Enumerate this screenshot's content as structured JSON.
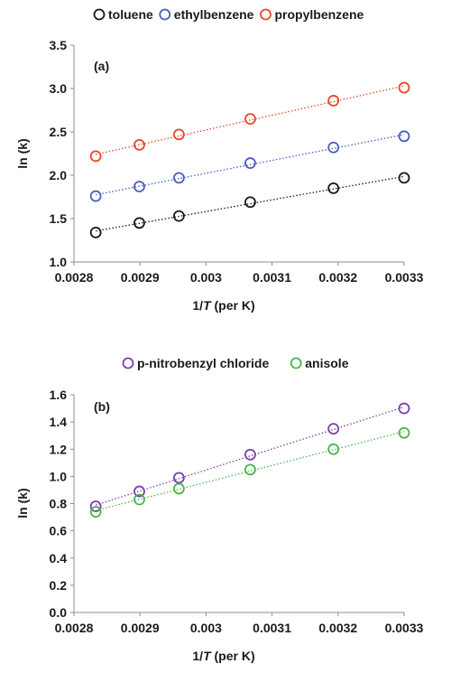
{
  "chart_data": [
    {
      "type": "scatter",
      "panel_label": "(a)",
      "xlabel_prefix": "1/",
      "xlabel_var": "T",
      "xlabel_suffix": " (per K)",
      "ylabel": "ln (k)",
      "xlim": [
        0.0028,
        0.0033
      ],
      "ylim": [
        1.0,
        3.5
      ],
      "x_ticks": [
        "0.0028",
        "0.0029",
        "0.003",
        "0.0031",
        "0.0032",
        "0.0033"
      ],
      "y_ticks": [
        "1.0",
        "1.5",
        "2.0",
        "2.5",
        "3.0",
        "3.5"
      ],
      "x_tick_values": [
        0.0028,
        0.0029,
        0.003,
        0.0031,
        0.0032,
        0.0033
      ],
      "y_tick_values": [
        1.0,
        1.5,
        2.0,
        2.5,
        3.0,
        3.5
      ],
      "legend_position": "top",
      "grid": false,
      "trendlines": "dotted linear",
      "x": [
        0.002833,
        0.002899,
        0.002959,
        0.003067,
        0.003193,
        0.0033
      ],
      "series": [
        {
          "name": "toluene",
          "color": "#1a1a1a",
          "values": [
            1.34,
            1.45,
            1.53,
            1.69,
            1.85,
            1.97
          ]
        },
        {
          "name": "ethylbenzene",
          "color": "#4a5fc1",
          "values": [
            1.76,
            1.87,
            1.97,
            2.14,
            2.32,
            2.45
          ]
        },
        {
          "name": "propylbenzene",
          "color": "#e8472c",
          "values": [
            2.22,
            2.35,
            2.47,
            2.65,
            2.86,
            3.01
          ]
        }
      ]
    },
    {
      "type": "scatter",
      "panel_label": "(b)",
      "xlabel_prefix": "1/",
      "xlabel_var": "T",
      "xlabel_suffix": " (per K)",
      "ylabel": "ln (k)",
      "xlim": [
        0.0028,
        0.0033
      ],
      "ylim": [
        0.0,
        1.6
      ],
      "x_ticks": [
        "0.0028",
        "0.0029",
        "0.003",
        "0.0031",
        "0.0032",
        "0.0033"
      ],
      "y_ticks": [
        "0.0",
        "0.2",
        "0.4",
        "0.6",
        "0.8",
        "1.0",
        "1.2",
        "1.4",
        "1.6"
      ],
      "x_tick_values": [
        0.0028,
        0.0029,
        0.003,
        0.0031,
        0.0032,
        0.0033
      ],
      "y_tick_values": [
        0.0,
        0.2,
        0.4,
        0.6,
        0.8,
        1.0,
        1.2,
        1.4,
        1.6
      ],
      "legend_position": "top",
      "grid": false,
      "trendlines": "dotted linear",
      "x": [
        0.002833,
        0.002899,
        0.002959,
        0.003067,
        0.003193,
        0.0033
      ],
      "series": [
        {
          "name": "p-nitrobenzyl chloride",
          "color": "#7a3fb0",
          "values": [
            0.78,
            0.89,
            0.99,
            1.16,
            1.35,
            1.5
          ]
        },
        {
          "name": "anisole",
          "color": "#49b64a",
          "values": [
            0.74,
            0.83,
            0.91,
            1.05,
            1.2,
            1.32
          ]
        }
      ]
    }
  ]
}
